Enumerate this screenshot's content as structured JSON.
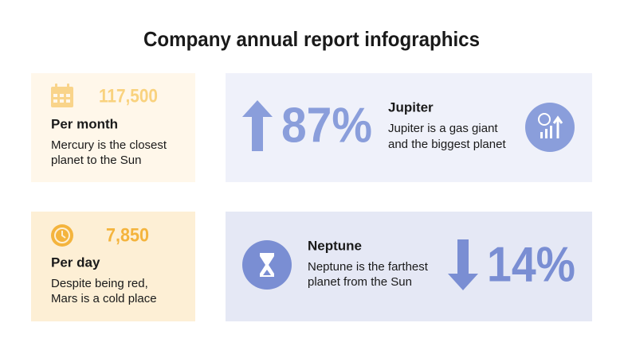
{
  "header": {
    "title": "Company annual report infographics"
  },
  "cards": [
    {
      "figure": "117,500",
      "heading": "Per month",
      "lines": [
        "Mercury is the closest",
        "planet to the Sun"
      ]
    },
    {
      "figure": "87%",
      "heading": "Jupiter",
      "lines": [
        "Jupiter is a gas giant",
        "and the biggest planet"
      ]
    },
    {
      "figure": "7,850",
      "heading": "Per day",
      "lines": [
        "Despite being red,",
        "Mars is a cold place"
      ]
    },
    {
      "figure": "14%",
      "heading": "Neptune",
      "lines": [
        "Neptune is the farthest",
        "planet from the Sun"
      ]
    }
  ]
}
